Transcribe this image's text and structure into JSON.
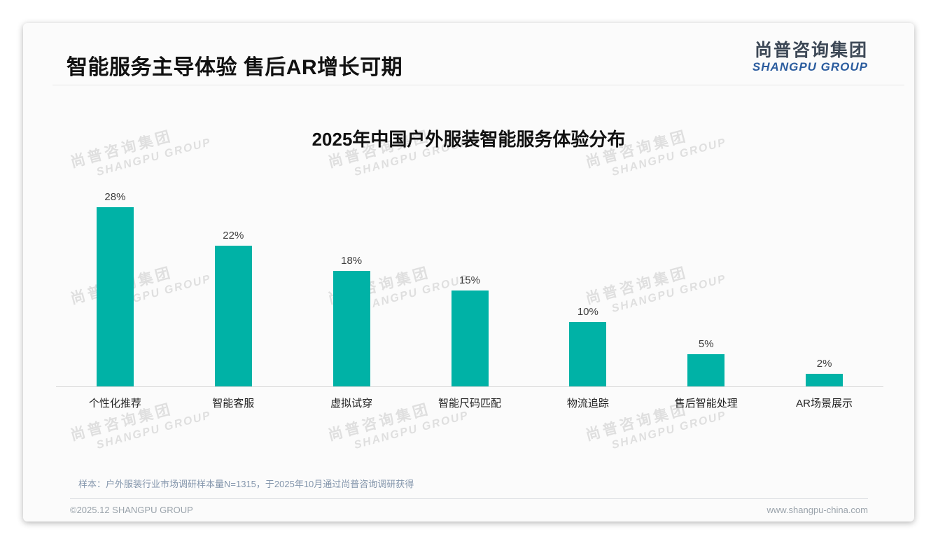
{
  "page": {
    "title": "智能服务主导体验 售后AR增长可期"
  },
  "logo": {
    "cn": "尚普咨询集团",
    "en": "SHANGPU GROUP"
  },
  "watermark": {
    "cn": "尚普咨询集团",
    "en": "SHANGPU GROUP"
  },
  "chart_data": {
    "type": "bar",
    "title": "2025年中国户外服装智能服务体验分布",
    "categories": [
      "个性化推荐",
      "智能客服",
      "虚拟试穿",
      "智能尺码匹配",
      "物流追踪",
      "售后智能处理",
      "AR场景展示"
    ],
    "values": [
      28,
      22,
      18,
      15,
      10,
      5,
      2
    ],
    "value_labels": [
      "28%",
      "22%",
      "18%",
      "15%",
      "10%",
      "5%",
      "2%"
    ],
    "unit": "%",
    "ylim": [
      0,
      30
    ],
    "grid": false,
    "legend": false,
    "bar_color": "#00b2a6"
  },
  "note": "样本：户外服装行业市场调研样本量N=1315，于2025年10月通过尚普咨询调研获得",
  "footer": {
    "left": "©2025.12 SHANGPU GROUP",
    "right": "www.shangpu-china.com"
  },
  "colors": {
    "bar": "#00b2a6",
    "title": "#111111",
    "logo_cn": "#3d4856",
    "logo_en": "#2b5c9e",
    "note": "#8496ac",
    "footer": "#9aa3ab"
  }
}
